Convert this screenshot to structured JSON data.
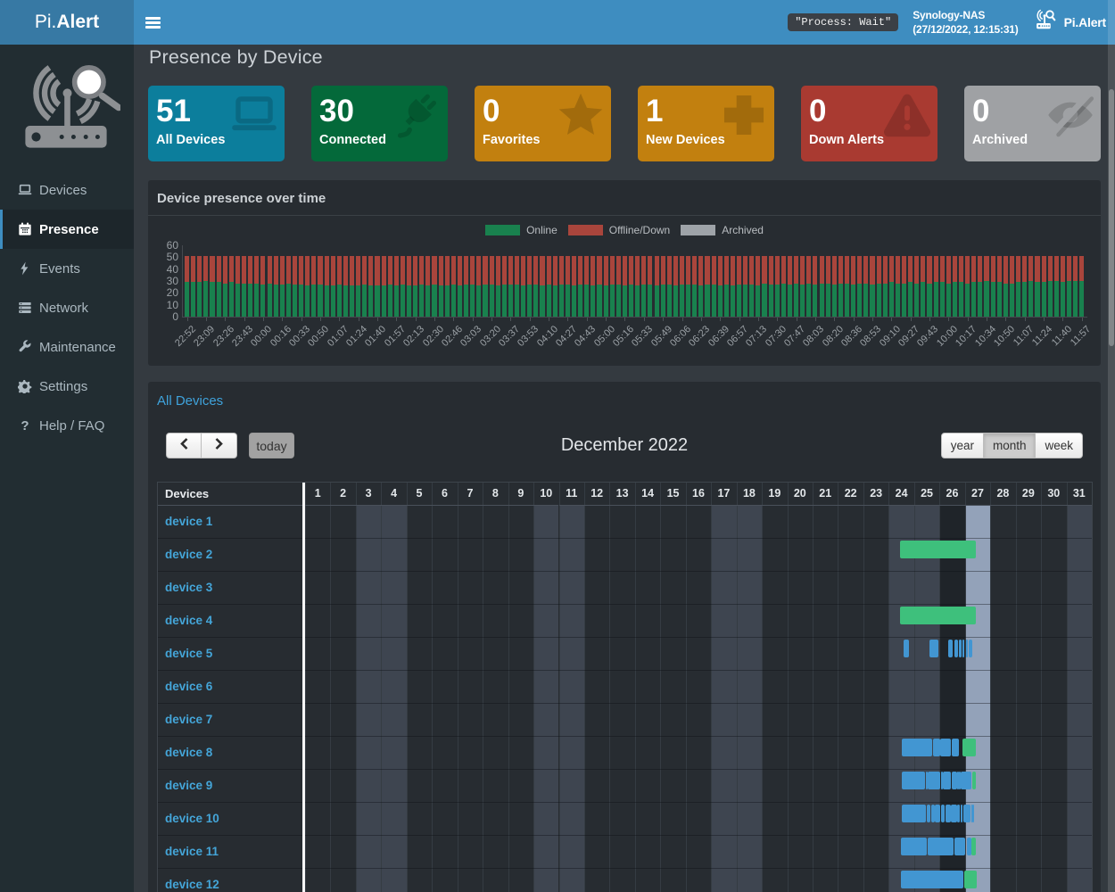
{
  "navbar": {
    "brand_prefix": "Pi.",
    "brand_suffix": "Alert",
    "hamburger_icon": "hamburger-icon",
    "process_status": "\"Process: Wait\"",
    "nas_name": "Synology-NAS",
    "nas_time": "(27/12/2022, 12:15:31)",
    "brand_right": "Pi.Alert"
  },
  "sidebar": {
    "items": [
      {
        "label": "Devices",
        "icon": "laptop-icon",
        "active": false
      },
      {
        "label": "Presence",
        "icon": "calendar-icon",
        "active": true
      },
      {
        "label": "Events",
        "icon": "bolt-icon",
        "active": false
      },
      {
        "label": "Network",
        "icon": "network-icon",
        "active": false
      },
      {
        "label": "Maintenance",
        "icon": "wrench-icon",
        "active": false
      },
      {
        "label": "Settings",
        "icon": "gear-icon",
        "active": false
      },
      {
        "label": "Help / FAQ",
        "icon": "question-icon",
        "active": false
      }
    ]
  },
  "page": {
    "title": "Presence by Device"
  },
  "info_boxes": [
    {
      "value": "51",
      "label": "All Devices",
      "color": "#0c7e9c",
      "icon": "laptop-icon",
      "icon_tone": "dark"
    },
    {
      "value": "30",
      "label": "Connected",
      "color": "#04693a",
      "icon": "plug-icon",
      "icon_tone": "dark"
    },
    {
      "value": "0",
      "label": "Favorites",
      "color": "#c2800f",
      "icon": "star-icon",
      "icon_tone": "dark"
    },
    {
      "value": "1",
      "label": "New Devices",
      "color": "#c2800f",
      "icon": "plus-icon",
      "icon_tone": "dark"
    },
    {
      "value": "0",
      "label": "Down Alerts",
      "color": "#a93a31",
      "icon": "warning-icon",
      "icon_tone": "dark"
    },
    {
      "value": "0",
      "label": "Archived",
      "color": "#9fa1a4",
      "icon": "eye-slash-icon",
      "icon_tone": "dark"
    }
  ],
  "chart_panel": {
    "title": "Device presence over time"
  },
  "chart_data": {
    "type": "bar",
    "stacked": true,
    "title": "Device presence over time",
    "legend": [
      "Online",
      "Offline/Down",
      "Archived"
    ],
    "legend_position": "top",
    "colors": {
      "online": "#19814e",
      "offline": "#a9453c",
      "archived": "#9ea3a8"
    },
    "ylim": [
      0,
      60
    ],
    "yticks": [
      0,
      10,
      20,
      30,
      40,
      50,
      60
    ],
    "x_tick_labels": [
      "22:52",
      "23:09",
      "23:26",
      "23:43",
      "00:00",
      "00:16",
      "00:33",
      "00:50",
      "01:07",
      "01:24",
      "01:40",
      "01:57",
      "02:13",
      "02:30",
      "02:46",
      "03:03",
      "03:20",
      "03:37",
      "03:53",
      "04:10",
      "04:27",
      "04:43",
      "05:00",
      "05:16",
      "05:33",
      "05:49",
      "06:06",
      "06:23",
      "06:39",
      "06:57",
      "07:13",
      "07:30",
      "07:47",
      "08:03",
      "08:20",
      "08:36",
      "08:53",
      "09:10",
      "09:27",
      "09:43",
      "10:00",
      "10:17",
      "10:34",
      "10:50",
      "11:07",
      "11:24",
      "11:40",
      "11:57"
    ],
    "bars_per_tick": 3,
    "bar_count": 142,
    "total_per_bar": 51,
    "series": [
      {
        "name": "Online",
        "values": [
          29,
          29,
          29,
          30,
          29,
          29,
          28,
          29,
          28,
          28,
          28,
          28,
          27,
          28,
          27,
          27,
          28,
          27,
          27,
          26,
          27,
          27,
          26,
          26,
          27,
          26,
          26,
          26,
          27,
          26,
          26,
          26,
          27,
          26,
          27,
          26,
          26,
          27,
          26,
          27,
          26,
          26,
          27,
          26,
          27,
          27,
          26,
          27,
          27,
          26,
          27,
          27,
          27,
          26,
          27,
          27,
          26,
          27,
          26,
          27,
          27,
          26,
          27,
          27,
          26,
          27,
          26,
          27,
          27,
          26,
          27,
          26,
          27,
          27,
          26,
          27,
          27,
          26,
          27,
          27,
          27,
          26,
          27,
          27,
          26,
          27,
          26,
          27,
          27,
          27,
          26,
          28,
          27,
          27,
          28,
          27,
          28,
          27,
          28,
          27,
          28,
          28,
          27,
          28,
          28,
          27,
          28,
          28,
          27,
          28,
          28,
          29,
          28,
          28,
          29,
          28,
          29,
          28,
          29,
          29,
          28,
          29,
          29,
          28,
          29,
          29,
          30,
          29,
          29,
          28,
          28,
          29,
          29,
          30,
          29,
          29,
          30,
          30,
          29,
          30,
          30,
          30
        ]
      },
      {
        "name": "Offline/Down",
        "values": [
          22,
          22,
          22,
          21,
          22,
          22,
          23,
          22,
          23,
          23,
          23,
          23,
          24,
          23,
          24,
          24,
          23,
          24,
          24,
          25,
          24,
          24,
          25,
          25,
          24,
          25,
          25,
          25,
          24,
          25,
          25,
          25,
          24,
          25,
          24,
          25,
          25,
          24,
          25,
          24,
          25,
          25,
          24,
          25,
          24,
          24,
          25,
          24,
          24,
          25,
          24,
          24,
          24,
          25,
          24,
          24,
          25,
          24,
          25,
          24,
          24,
          25,
          24,
          24,
          25,
          24,
          25,
          24,
          24,
          25,
          24,
          25,
          24,
          24,
          25,
          24,
          24,
          25,
          24,
          24,
          24,
          25,
          24,
          24,
          25,
          24,
          25,
          24,
          24,
          24,
          25,
          23,
          24,
          24,
          23,
          24,
          23,
          24,
          23,
          24,
          23,
          23,
          24,
          23,
          23,
          24,
          23,
          23,
          24,
          23,
          23,
          22,
          23,
          23,
          22,
          23,
          22,
          23,
          22,
          22,
          23,
          22,
          22,
          23,
          22,
          22,
          21,
          22,
          22,
          23,
          23,
          22,
          22,
          21,
          22,
          22,
          21,
          21,
          22,
          21,
          21,
          21
        ]
      },
      {
        "name": "Archived",
        "values_constant": 0
      }
    ]
  },
  "calendar": {
    "title": "All Devices",
    "toolbar": {
      "prev_icon": "chevron-left-icon",
      "next_icon": "chevron-right-icon",
      "today_label": "today",
      "month_title": "December 2022",
      "views": [
        {
          "label": "year",
          "active": false
        },
        {
          "label": "month",
          "active": true
        },
        {
          "label": "week",
          "active": false
        }
      ]
    },
    "grid": {
      "corner_header": "Devices",
      "days_in_month": 31,
      "weekend_days": [
        3,
        4,
        10,
        11,
        17,
        18,
        24,
        25,
        31
      ],
      "today_day": 27,
      "shaded_day": 26
    },
    "event_colors": {
      "b": "#4296d2",
      "g": "#3ec07c"
    },
    "devices": [
      {
        "name": "device 1",
        "events": []
      },
      {
        "name": "device 2",
        "events": [
          [
            24.45,
            27.42,
            "g"
          ]
        ]
      },
      {
        "name": "device 3",
        "events": []
      },
      {
        "name": "device 4",
        "events": [
          [
            24.45,
            27.42,
            "g"
          ]
        ]
      },
      {
        "name": "device 5",
        "events": [
          [
            24.58,
            24.8,
            "b"
          ],
          [
            25.6,
            25.95,
            "b"
          ],
          [
            26.35,
            26.51,
            "b"
          ],
          [
            26.59,
            26.72,
            "b"
          ],
          [
            26.78,
            26.86,
            "b"
          ],
          [
            26.89,
            26.99,
            "b"
          ],
          [
            27.03,
            27.13,
            "b"
          ],
          [
            27.16,
            27.28,
            "b"
          ]
        ]
      },
      {
        "name": "device 6",
        "events": []
      },
      {
        "name": "device 7",
        "events": []
      },
      {
        "name": "device 8",
        "events": [
          [
            24.51,
            25.71,
            "b"
          ],
          [
            25.74,
            26.01,
            "b"
          ],
          [
            26.04,
            26.45,
            "b"
          ],
          [
            26.48,
            26.78,
            "b"
          ],
          [
            26.9,
            27.44,
            "g"
          ]
        ]
      },
      {
        "name": "device 9",
        "events": [
          [
            24.51,
            25.44,
            "b"
          ],
          [
            25.47,
            25.51,
            "b"
          ],
          [
            25.54,
            26.03,
            "b"
          ],
          [
            26.06,
            26.11,
            "b"
          ],
          [
            26.14,
            26.45,
            "b"
          ],
          [
            26.48,
            26.68,
            "b"
          ],
          [
            26.71,
            26.75,
            "b"
          ],
          [
            26.78,
            26.82,
            "b"
          ],
          [
            26.85,
            27.24,
            "b"
          ],
          [
            27.29,
            27.44,
            "g"
          ]
        ]
      },
      {
        "name": "device 10",
        "events": [
          [
            24.51,
            25.47,
            "b"
          ],
          [
            25.5,
            25.65,
            "b"
          ],
          [
            25.68,
            25.8,
            "b"
          ],
          [
            25.83,
            26.03,
            "b"
          ],
          [
            26.06,
            26.21,
            "b"
          ],
          [
            26.24,
            26.43,
            "b"
          ],
          [
            26.46,
            26.68,
            "b"
          ],
          [
            26.71,
            26.79,
            "b"
          ],
          [
            26.82,
            26.91,
            "b"
          ],
          [
            26.94,
            27.21,
            "b"
          ],
          [
            27.24,
            27.27,
            "b"
          ],
          [
            27.3,
            27.37,
            "b"
          ]
        ]
      },
      {
        "name": "device 11",
        "events": [
          [
            24.48,
            25.5,
            "b"
          ],
          [
            25.55,
            26.54,
            "b"
          ],
          [
            26.6,
            27.0,
            "b"
          ],
          [
            27.07,
            27.24,
            "b"
          ],
          [
            27.26,
            27.42,
            "g"
          ]
        ]
      },
      {
        "name": "device 12",
        "events": [
          [
            24.48,
            26.93,
            "b"
          ],
          [
            26.96,
            27.45,
            "g"
          ]
        ]
      }
    ]
  },
  "scrollbar": {
    "thumb_top": 100,
    "thumb_height": 288
  }
}
